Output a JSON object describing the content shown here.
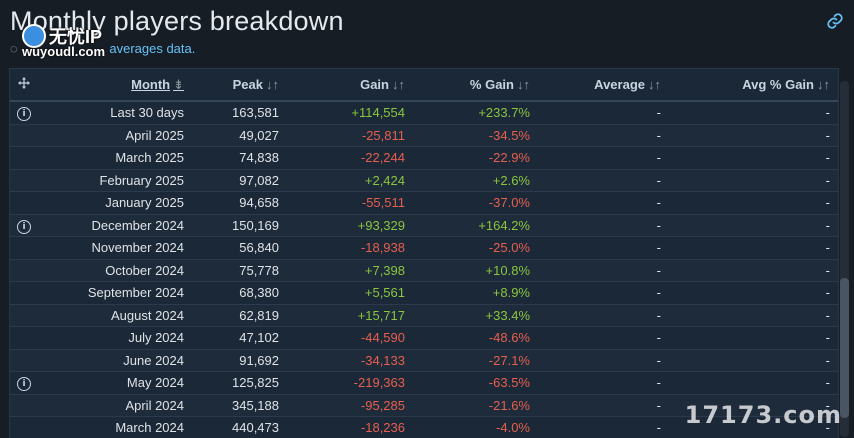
{
  "page": {
    "title": "Monthly players breakdown",
    "subtitle_link": "averages data.",
    "link_icon": "link-icon",
    "spinner_icon": "spinner-icon"
  },
  "watermarks": {
    "top_left_cn": "无忧IP",
    "top_left_url": "wuyoudl.com",
    "bottom_right": "17173.com"
  },
  "table": {
    "columns": [
      {
        "label": "",
        "icon": "move-icon"
      },
      {
        "label": "Month",
        "sort": "⇟"
      },
      {
        "label": "Peak",
        "sort": "↓↑"
      },
      {
        "label": "Gain",
        "sort": "↓↑"
      },
      {
        "label": "% Gain",
        "sort": "↓↑"
      },
      {
        "label": "Average",
        "sort": "↓↑"
      },
      {
        "label": "Avg % Gain",
        "sort": "↓↑"
      }
    ],
    "rows": [
      {
        "info": true,
        "month": "Last 30 days",
        "peak": "163,581",
        "gain": "+114,554",
        "pct": "+233.7%",
        "avg": "-",
        "avg_pct": "-"
      },
      {
        "info": false,
        "month": "April 2025",
        "peak": "49,027",
        "gain": "-25,811",
        "pct": "-34.5%",
        "avg": "-",
        "avg_pct": "-"
      },
      {
        "info": false,
        "month": "March 2025",
        "peak": "74,838",
        "gain": "-22,244",
        "pct": "-22.9%",
        "avg": "-",
        "avg_pct": "-"
      },
      {
        "info": false,
        "month": "February 2025",
        "peak": "97,082",
        "gain": "+2,424",
        "pct": "+2.6%",
        "avg": "-",
        "avg_pct": "-"
      },
      {
        "info": false,
        "month": "January 2025",
        "peak": "94,658",
        "gain": "-55,511",
        "pct": "-37.0%",
        "avg": "-",
        "avg_pct": "-"
      },
      {
        "info": true,
        "month": "December 2024",
        "peak": "150,169",
        "gain": "+93,329",
        "pct": "+164.2%",
        "avg": "-",
        "avg_pct": "-"
      },
      {
        "info": false,
        "month": "November 2024",
        "peak": "56,840",
        "gain": "-18,938",
        "pct": "-25.0%",
        "avg": "-",
        "avg_pct": "-"
      },
      {
        "info": false,
        "month": "October 2024",
        "peak": "75,778",
        "gain": "+7,398",
        "pct": "+10.8%",
        "avg": "-",
        "avg_pct": "-"
      },
      {
        "info": false,
        "month": "September 2024",
        "peak": "68,380",
        "gain": "+5,561",
        "pct": "+8.9%",
        "avg": "-",
        "avg_pct": "-"
      },
      {
        "info": false,
        "month": "August 2024",
        "peak": "62,819",
        "gain": "+15,717",
        "pct": "+33.4%",
        "avg": "-",
        "avg_pct": "-"
      },
      {
        "info": false,
        "month": "July 2024",
        "peak": "47,102",
        "gain": "-44,590",
        "pct": "-48.6%",
        "avg": "-",
        "avg_pct": "-"
      },
      {
        "info": false,
        "month": "June 2024",
        "peak": "91,692",
        "gain": "-34,133",
        "pct": "-27.1%",
        "avg": "-",
        "avg_pct": "-"
      },
      {
        "info": true,
        "month": "May 2024",
        "peak": "125,825",
        "gain": "-219,363",
        "pct": "-63.5%",
        "avg": "-",
        "avg_pct": "-"
      },
      {
        "info": false,
        "month": "April 2024",
        "peak": "345,188",
        "gain": "-95,285",
        "pct": "-21.6%",
        "avg": "-",
        "avg_pct": "-"
      },
      {
        "info": false,
        "month": "March 2024",
        "peak": "440,473",
        "gain": "-18,236",
        "pct": "-4.0%",
        "avg": "-",
        "avg_pct": "-"
      }
    ],
    "info_icon_glyph": "i"
  },
  "colors": {
    "positive": "#8bc53f",
    "negative": "#e75f4e",
    "link": "#66c0f4",
    "background": "#171d25"
  }
}
